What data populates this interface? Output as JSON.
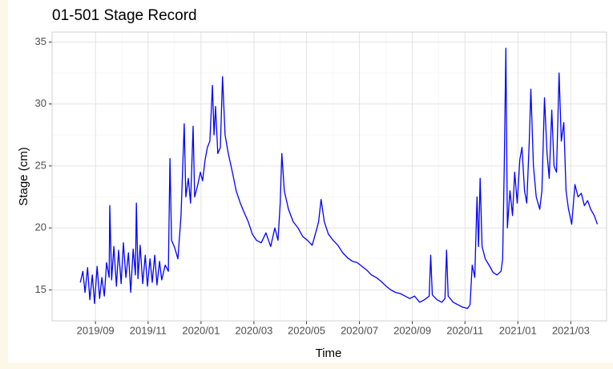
{
  "chart_data": {
    "type": "line",
    "title": "01-501 Stage Record",
    "x_label": "Time",
    "y_label": "Stage (cm)",
    "color": "#0000ff",
    "grid": true,
    "xlim": [
      2019.53,
      2021.28
    ],
    "xticks": [
      {
        "value": 2019.667,
        "label": "2019/09"
      },
      {
        "value": 2019.833,
        "label": "2019/11"
      },
      {
        "value": 2020.0,
        "label": "2020/01"
      },
      {
        "value": 2020.167,
        "label": "2020/03"
      },
      {
        "value": 2020.333,
        "label": "2020/05"
      },
      {
        "value": 2020.5,
        "label": "2020/07"
      },
      {
        "value": 2020.667,
        "label": "2020/09"
      },
      {
        "value": 2020.833,
        "label": "2020/11"
      },
      {
        "value": 2021.0,
        "label": "2021/01"
      },
      {
        "value": 2021.167,
        "label": "2021/03"
      }
    ],
    "ylim": [
      12.5,
      35.8
    ],
    "yticks": [
      15,
      20,
      25,
      30,
      35
    ],
    "x": [
      2019.619,
      2019.627,
      2019.634,
      2019.642,
      2019.649,
      2019.657,
      2019.664,
      2019.672,
      2019.68,
      2019.687,
      2019.695,
      2019.702,
      2019.71,
      2019.712,
      2019.718,
      2019.725,
      2019.733,
      2019.74,
      2019.748,
      2019.755,
      2019.763,
      2019.771,
      2019.778,
      2019.786,
      2019.793,
      2019.796,
      2019.801,
      2019.808,
      2019.816,
      2019.824,
      2019.831,
      2019.839,
      2019.846,
      2019.854,
      2019.861,
      2019.869,
      2019.876,
      2019.887,
      2019.897,
      2019.902,
      2019.907,
      2019.917,
      2019.927,
      2019.937,
      2019.947,
      2019.952,
      2019.96,
      2019.967,
      2019.975,
      2019.98,
      2019.99,
      2019.998,
      2020.005,
      2020.013,
      2020.02,
      2020.028,
      2020.036,
      2020.041,
      2020.046,
      2020.053,
      2020.061,
      2020.068,
      2020.076,
      2020.086,
      2020.099,
      2020.111,
      2020.124,
      2020.137,
      2020.149,
      2020.162,
      2020.175,
      2020.19,
      2020.205,
      2020.22,
      2020.233,
      2020.243,
      2020.25,
      2020.255,
      2020.263,
      2020.276,
      2020.291,
      2020.306,
      2020.321,
      2020.336,
      2020.351,
      2020.364,
      2020.371,
      2020.379,
      2020.389,
      2020.402,
      2020.417,
      2020.432,
      2020.447,
      2020.462,
      2020.478,
      2020.493,
      2020.508,
      2020.523,
      2020.538,
      2020.553,
      2020.568,
      2020.584,
      2020.599,
      2020.614,
      2020.629,
      2020.644,
      2020.659,
      2020.674,
      2020.69,
      2020.705,
      2020.72,
      2020.725,
      2020.73,
      2020.745,
      2020.76,
      2020.77,
      2020.775,
      2020.78,
      2020.796,
      2020.811,
      2020.826,
      2020.841,
      2020.849,
      2020.856,
      2020.864,
      2020.871,
      2020.876,
      2020.881,
      2020.887,
      2020.897,
      2020.909,
      2020.922,
      2020.934,
      2020.947,
      2020.952,
      2020.957,
      2020.962,
      2020.967,
      2020.975,
      2020.983,
      2020.99,
      2020.998,
      2021.006,
      2021.013,
      2021.021,
      2021.028,
      2021.036,
      2021.041,
      2021.049,
      2021.058,
      2021.069,
      2021.076,
      2021.084,
      2021.092,
      2021.099,
      2021.107,
      2021.114,
      2021.122,
      2021.13,
      2021.137,
      2021.145,
      2021.152,
      2021.16,
      2021.17,
      2021.18,
      2021.19,
      2021.2,
      2021.21,
      2021.22,
      2021.23,
      2021.241,
      2021.251
    ],
    "values": [
      15.6,
      16.5,
      14.8,
      16.8,
      14.2,
      16.2,
      13.9,
      16.9,
      14.3,
      16.0,
      14.5,
      17.2,
      16.0,
      21.8,
      15.8,
      18.5,
      15.3,
      18.2,
      15.5,
      18.8,
      16.0,
      18.0,
      14.8,
      18.3,
      16.2,
      22.0,
      15.9,
      18.6,
      15.5,
      17.8,
      15.3,
      17.5,
      15.6,
      17.8,
      15.4,
      17.3,
      15.8,
      17.0,
      16.5,
      25.6,
      19.0,
      18.4,
      17.5,
      21.0,
      28.4,
      22.5,
      24.0,
      22.0,
      28.2,
      22.5,
      23.5,
      24.5,
      23.8,
      25.5,
      26.5,
      27.0,
      31.5,
      27.5,
      29.8,
      26.0,
      26.5,
      32.2,
      27.5,
      26.0,
      24.5,
      23.0,
      22.0,
      21.2,
      20.5,
      19.5,
      19.0,
      18.8,
      19.6,
      18.5,
      20.0,
      19.0,
      22.0,
      26.0,
      23.0,
      21.5,
      20.5,
      20.0,
      19.3,
      19.0,
      18.6,
      19.8,
      20.5,
      22.3,
      20.5,
      19.5,
      19.0,
      18.6,
      18.0,
      17.6,
      17.3,
      17.2,
      16.9,
      16.6,
      16.2,
      16.0,
      15.7,
      15.3,
      15.0,
      14.8,
      14.7,
      14.5,
      14.3,
      14.5,
      14.0,
      14.2,
      14.5,
      17.8,
      14.6,
      14.2,
      14.0,
      14.3,
      18.2,
      14.5,
      14.0,
      13.8,
      13.6,
      13.5,
      13.8,
      17.0,
      16.0,
      22.5,
      18.5,
      24.0,
      18.5,
      17.5,
      17.0,
      16.4,
      16.2,
      16.5,
      17.5,
      25.0,
      34.5,
      20.0,
      23.0,
      21.0,
      24.5,
      22.0,
      25.5,
      26.5,
      23.0,
      22.0,
      27.0,
      31.2,
      25.0,
      22.5,
      21.5,
      23.0,
      30.5,
      26.0,
      24.0,
      29.5,
      25.0,
      24.5,
      32.5,
      27.0,
      28.5,
      23.0,
      21.5,
      20.3,
      23.5,
      22.5,
      22.8,
      21.8,
      22.2,
      21.5,
      21.0,
      20.3
    ]
  }
}
